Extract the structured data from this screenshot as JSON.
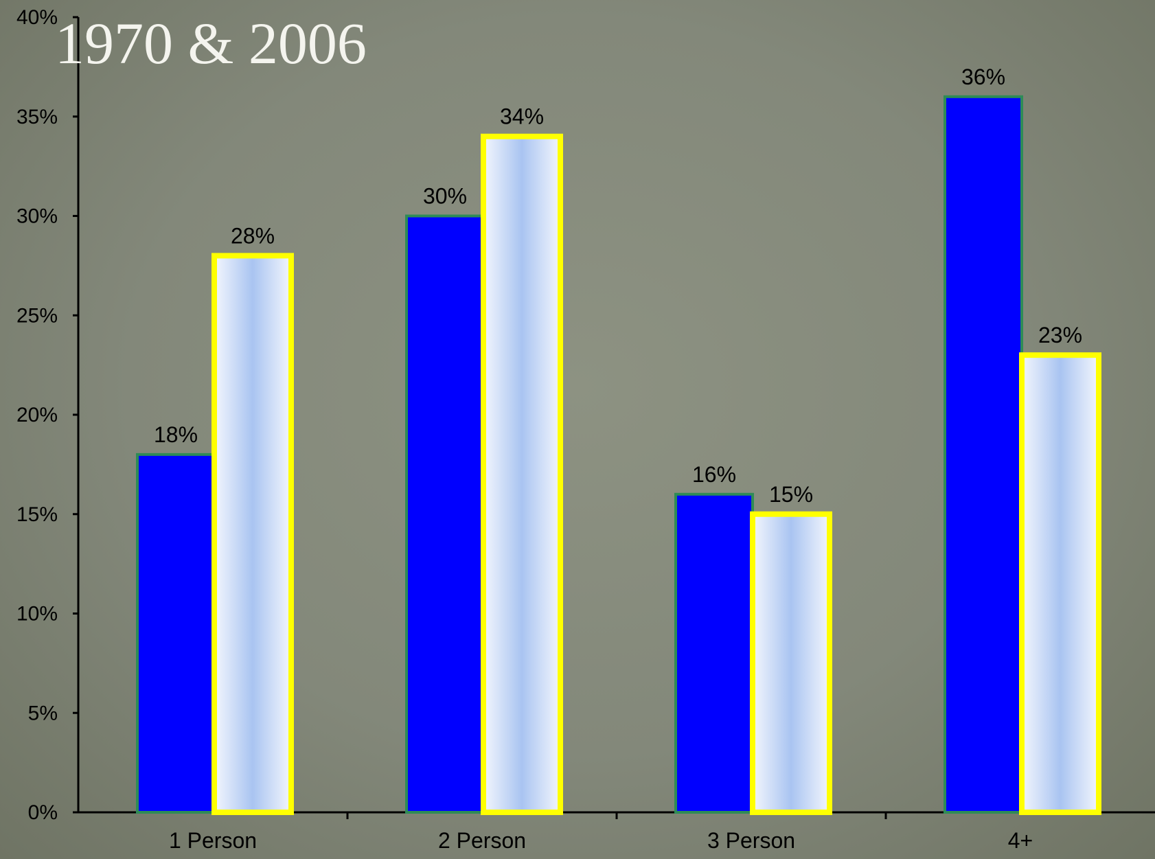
{
  "chart_data": {
    "type": "bar",
    "title": "1970 & 2006",
    "categories": [
      "1 Person",
      "2 Person",
      "3 Person",
      "4+"
    ],
    "series": [
      {
        "values": [
          18,
          30,
          16,
          36
        ],
        "color": "#0000ff",
        "border": "#2e8b57"
      },
      {
        "values": [
          28,
          34,
          15,
          23
        ],
        "color": "#dbe6fb",
        "border": "#ffff00"
      }
    ],
    "data_labels": [
      [
        "18%",
        "30%",
        "16%",
        "36%"
      ],
      [
        "28%",
        "34%",
        "15%",
        "23%"
      ]
    ],
    "ylim": [
      0,
      40
    ],
    "yticks": [
      "0%",
      "5%",
      "10%",
      "15%",
      "20%",
      "25%",
      "30%",
      "35%",
      "40%"
    ],
    "grid": false,
    "legend": "none"
  }
}
